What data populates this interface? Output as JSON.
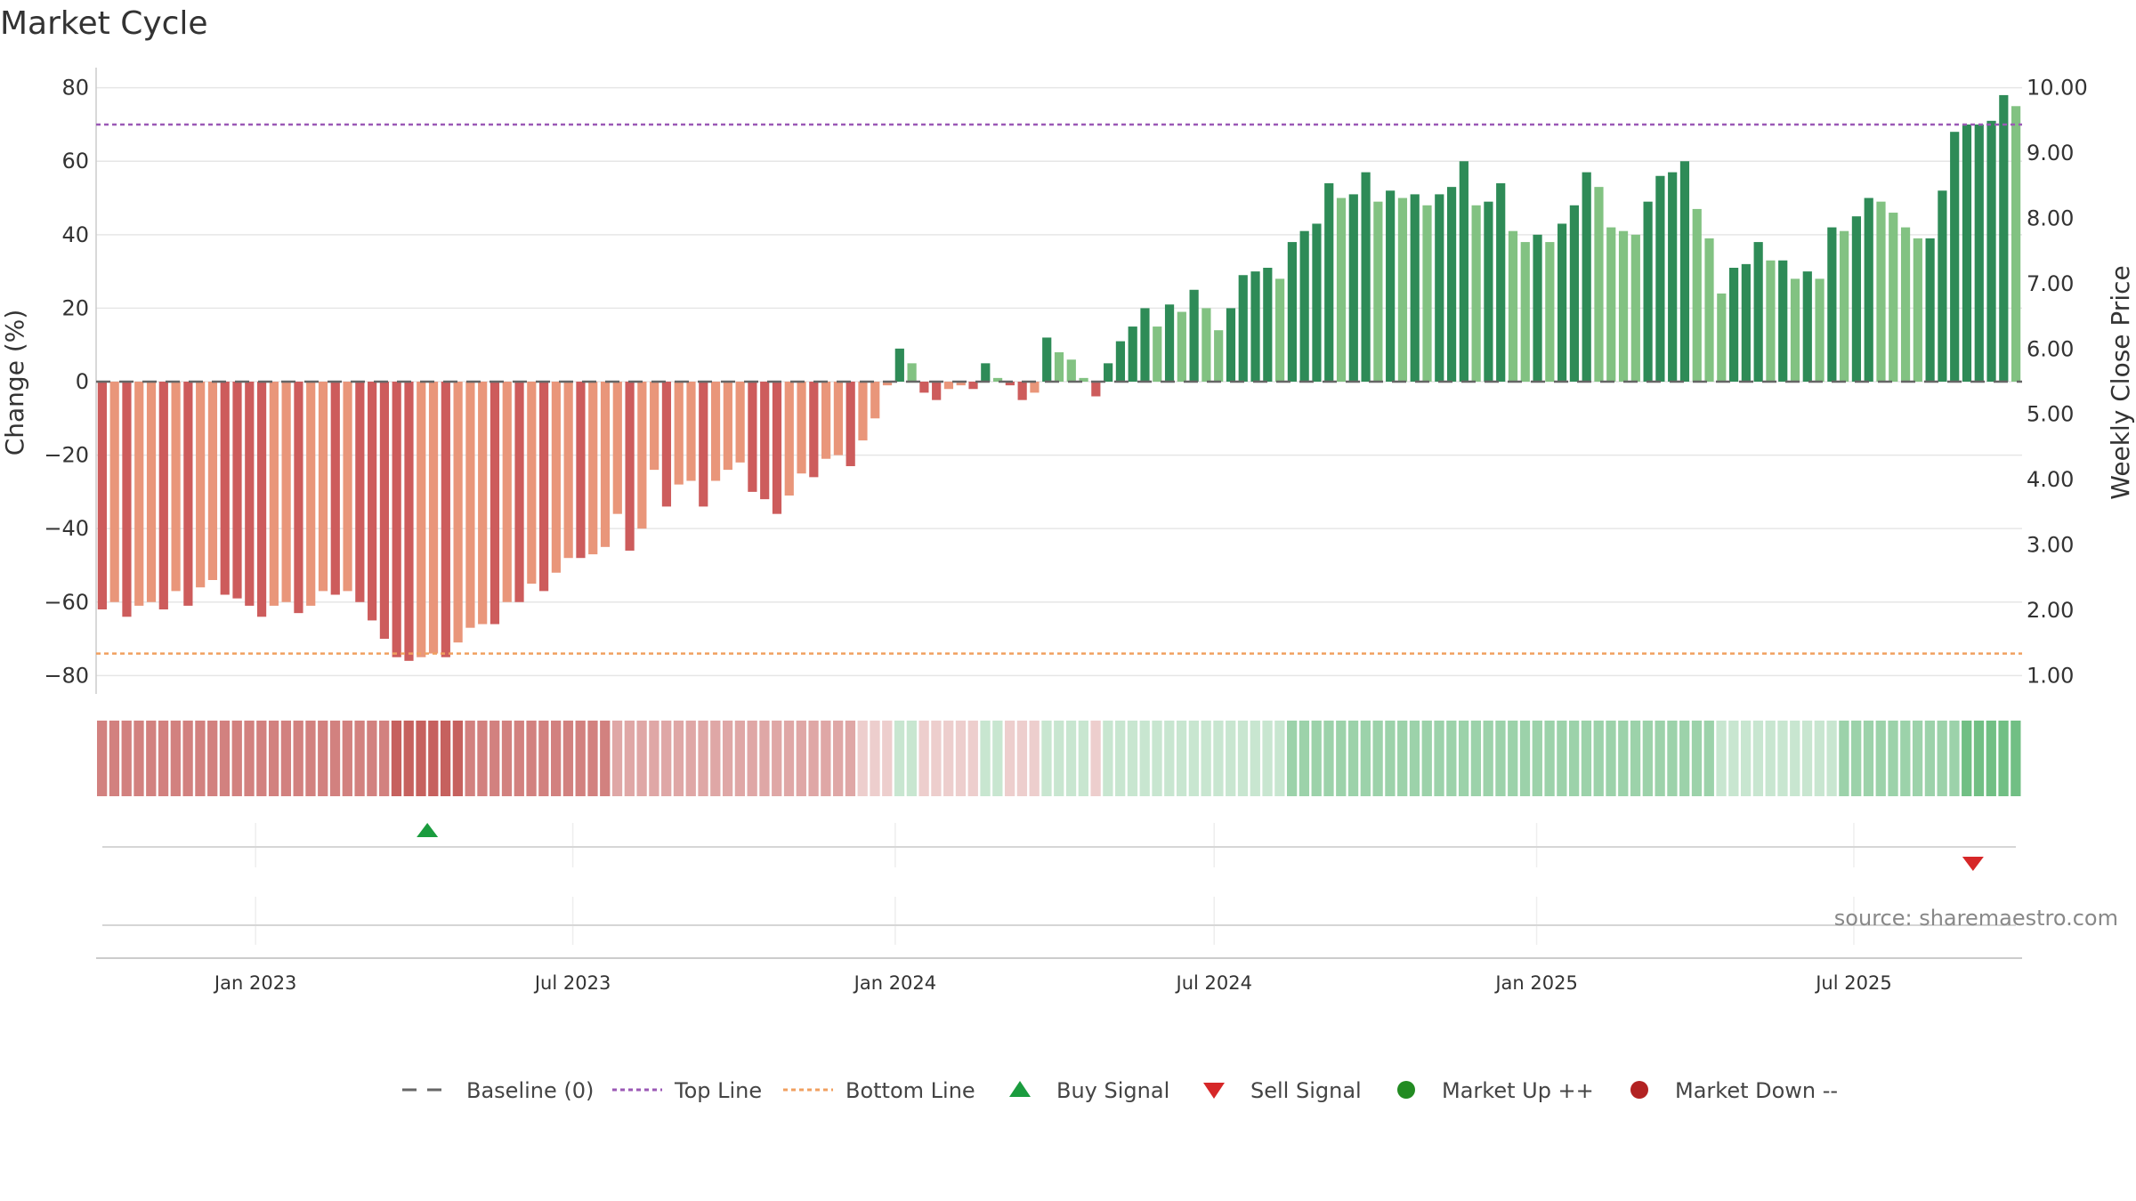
{
  "chart_data": {
    "type": "bar",
    "title": "Market Cycle",
    "ylabel_left": "Change (%)",
    "ylabel_right": "Weekly Close Price",
    "source": "source: sharemaestro.com",
    "ylim_left": [
      -85,
      85
    ],
    "yticks_left": [
      80,
      60,
      40,
      20,
      0,
      -20,
      -40,
      -60,
      -80
    ],
    "ytick_labels_left": [
      "80",
      "60",
      "40",
      "20",
      "0",
      "−20",
      "−40",
      "−60",
      "−80"
    ],
    "yticks_right": [
      10,
      9,
      8,
      7,
      6,
      5,
      4,
      3,
      2,
      1
    ],
    "ytick_labels_right": [
      "10.00",
      "9.00",
      "8.00",
      "7.00",
      "6.00",
      "5.00",
      "4.00",
      "3.00",
      "2.00",
      "1.00"
    ],
    "x_start": "2022-10-02",
    "x_end": "2025-10-05",
    "xticks": [
      "2023-01-01",
      "2023-07-01",
      "2024-01-01",
      "2024-07-01",
      "2025-01-01",
      "2025-07-01"
    ],
    "xtick_labels": [
      "Jan 2023",
      "Jul 2023",
      "Jan 2024",
      "Jul 2024",
      "Jan 2025",
      "Jul 2025"
    ],
    "first_bar_date": "2022-10-02",
    "bar_interval_days": 7,
    "baseline": 0,
    "top_line": 70,
    "bottom_line": -74,
    "values": [
      -62,
      -60,
      -64,
      -61,
      -60,
      -62,
      -57,
      -61,
      -56,
      -54,
      -58,
      -59,
      -61,
      -64,
      -61,
      -60,
      -63,
      -61,
      -57,
      -58,
      -57,
      -60,
      -65,
      -70,
      -75,
      -76,
      -75,
      -74,
      -75,
      -71,
      -67,
      -66,
      -66,
      -60,
      -60,
      -55,
      -57,
      -52,
      -48,
      -48,
      -47,
      -45,
      -36,
      -46,
      -40,
      -24,
      -34,
      -28,
      -27,
      -34,
      -27,
      -24,
      -22,
      -30,
      -32,
      -36,
      -31,
      -25,
      -26,
      -21,
      -20,
      -23,
      -16,
      -10,
      -1,
      9,
      5,
      -3,
      -5,
      -2,
      -1,
      -2,
      5,
      1,
      -1,
      -5,
      -3,
      12,
      8,
      6,
      1,
      -4,
      5,
      11,
      15,
      20,
      15,
      21,
      19,
      25,
      20,
      14,
      20,
      29,
      30,
      31,
      28,
      38,
      41,
      43,
      54,
      50,
      51,
      57,
      49,
      52,
      50,
      51,
      48,
      51,
      53,
      60,
      48,
      49,
      54,
      41,
      38,
      40,
      38,
      43,
      48,
      57,
      53,
      42,
      41,
      40,
      49,
      56,
      57,
      60,
      47,
      39,
      24,
      31,
      32,
      38,
      33,
      33,
      28,
      30,
      28,
      42,
      41,
      45,
      50,
      49,
      46,
      42,
      39,
      39,
      52,
      68,
      70,
      70,
      71,
      78,
      75
    ],
    "strength": [
      3,
      3,
      3,
      3,
      3,
      3,
      3,
      3,
      3,
      3,
      3,
      3,
      3,
      3,
      3,
      3,
      3,
      3,
      3,
      3,
      3,
      3,
      3,
      3,
      4,
      4,
      4,
      4,
      4,
      4,
      3,
      3,
      3,
      3,
      3,
      3,
      3,
      3,
      3,
      3,
      3,
      3,
      2,
      2,
      2,
      2,
      2,
      2,
      2,
      2,
      2,
      2,
      2,
      2,
      2,
      2,
      2,
      2,
      2,
      2,
      2,
      2,
      1,
      1,
      1,
      1,
      1,
      1,
      1,
      1,
      1,
      1,
      1,
      1,
      1,
      1,
      1,
      1,
      1,
      1,
      1,
      1,
      1,
      1,
      1,
      1,
      1,
      1,
      1,
      1,
      1,
      1,
      1,
      1,
      1,
      1,
      1,
      2,
      2,
      2,
      2,
      2,
      2,
      2,
      2,
      2,
      2,
      2,
      2,
      2,
      2,
      2,
      2,
      2,
      2,
      2,
      2,
      2,
      2,
      2,
      2,
      2,
      2,
      2,
      2,
      2,
      2,
      2,
      2,
      2,
      2,
      2,
      1,
      1,
      1,
      1,
      1,
      1,
      1,
      1,
      1,
      1,
      2,
      2,
      2,
      2,
      2,
      2,
      2,
      2,
      2,
      2,
      3,
      3,
      3,
      3,
      3,
      3,
      3
    ],
    "buy_signals": [
      "2023-04-09"
    ],
    "sell_signals": [
      "2025-09-07"
    ],
    "legend": [
      "Baseline (0)",
      "Top Line",
      "Bottom Line",
      "Buy Signal",
      "Sell Signal",
      "Market Up ++",
      "Market Down --"
    ],
    "colors": {
      "bar_pos_dark": "#2e8b57",
      "bar_pos_light": "#82c282",
      "bar_neg_dark": "#cd5c5c",
      "bar_neg_light": "#e9967a",
      "top_line": "#9b59b6",
      "bottom_line": "#f0a060",
      "baseline": "#666666",
      "buy": "#1a9c3e",
      "sell": "#d62728",
      "market_up": "#228b22",
      "market_down": "#b22222",
      "heat_pos": "#3aa655",
      "heat_neg": "#c0504d"
    }
  }
}
